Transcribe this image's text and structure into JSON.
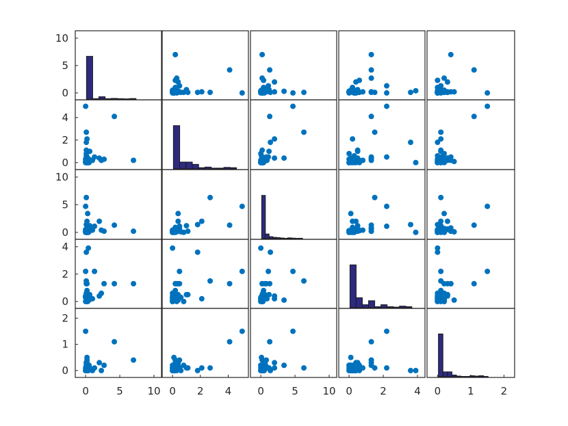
{
  "chart_data": {
    "type": "scatter",
    "title": "",
    "variables": 5,
    "marker_color": "#0072bd",
    "histogram_color": "#2e2a7e",
    "grid": false,
    "axes": [
      {
        "lim": [
          0,
          11
        ],
        "ticks": [
          0,
          5,
          10
        ],
        "hlim": [
          0,
          11
        ],
        "hticks": [
          0,
          5,
          10
        ]
      },
      {
        "lim": [
          0,
          5.4
        ],
        "ticks": [
          0,
          2,
          4
        ],
        "hlim": [
          0,
          5.4
        ],
        "hticks": [
          0,
          2,
          4
        ]
      },
      {
        "lim": [
          0,
          11
        ],
        "ticks": [
          0,
          5,
          10
        ],
        "hlim": [
          0,
          11
        ],
        "hticks": [
          0,
          5,
          10
        ]
      },
      {
        "lim": [
          0,
          4.4
        ],
        "ticks": [
          0,
          2,
          4
        ],
        "hlim": [
          0,
          4.4
        ],
        "hticks": [
          0,
          2,
          4
        ]
      },
      {
        "lim": [
          0,
          2.3
        ],
        "ticks": [
          0,
          1,
          2
        ],
        "hlim": [
          0,
          2.3
        ],
        "hticks": [
          0,
          1,
          2
        ]
      }
    ],
    "variable_data": [
      [
        0.1,
        0.1,
        0.1,
        0.2,
        0.2,
        0.3,
        0.5,
        0.5,
        0.0,
        0.1,
        0.2,
        0.3,
        0.4,
        0.1,
        0.0,
        0.2,
        0.6,
        1.0,
        0.2,
        0.0,
        0.3,
        0.5,
        0.1,
        0.0,
        0.4,
        0.2,
        0.0,
        0.1,
        0.3,
        0.2,
        1.3,
        2.0,
        2.3,
        2.7,
        4.2,
        7.0,
        0.2,
        0.1,
        0.0,
        0.3,
        0.1,
        0.1,
        0.2,
        0.4
      ],
      [
        0.8,
        1.1,
        0.6,
        0.1,
        0.2,
        0.0,
        0.0,
        0.3,
        0.1,
        0.4,
        2.1,
        0.0,
        0.2,
        0.0,
        0.1,
        0.5,
        1.0,
        0.2,
        0.3,
        0.1,
        0.0,
        0.2,
        0.4,
        0.0,
        0.1,
        0.2,
        0.3,
        0.0,
        0.2,
        0.1,
        0.5,
        0.4,
        0.2,
        0.3,
        4.1,
        0.2,
        0.0,
        0.1,
        5.0,
        0.4,
        1.8,
        2.7,
        0.2,
        0.0
      ],
      [
        0.0,
        0.2,
        0.1,
        0.3,
        0.4,
        0.0,
        0.1,
        0.2,
        0.5,
        0.6,
        2.0,
        0.0,
        0.1,
        0.3,
        0.2,
        0.8,
        1.2,
        0.4,
        0.1,
        0.0,
        0.2,
        0.9,
        0.5,
        0.3,
        0.1,
        0.0,
        0.2,
        0.4,
        0.7,
        0.1,
        1.1,
        2.0,
        0.4,
        0.2,
        1.3,
        0.2,
        0.3,
        0.0,
        4.7,
        3.4,
        1.4,
        6.3,
        0.6,
        0.0
      ],
      [
        0.0,
        0.5,
        0.3,
        0.1,
        0.8,
        0.2,
        0.3,
        0.1,
        0.4,
        1.3,
        0.2,
        0.0,
        0.1,
        0.6,
        0.4,
        1.3,
        0.5,
        0.2,
        0.0,
        0.3,
        0.1,
        0.2,
        0.5,
        0.0,
        0.2,
        0.1,
        0.3,
        0.4,
        0.2,
        0.1,
        2.2,
        0.4,
        0.6,
        1.3,
        1.3,
        1.3,
        0.0,
        0.2,
        2.2,
        0.1,
        3.6,
        1.5,
        0.5,
        3.9
      ],
      [
        0.2,
        0.1,
        0.0,
        0.0,
        0.1,
        0.0,
        0.1,
        0.2,
        0.0,
        0.3,
        0.1,
        0.0,
        0.1,
        0.2,
        0.0,
        0.4,
        0.1,
        0.0,
        0.2,
        0.1,
        0.0,
        0.1,
        0.3,
        0.0,
        0.1,
        0.2,
        0.0,
        0.1,
        0.2,
        0.5,
        0.1,
        0.3,
        0.0,
        0.2,
        1.1,
        0.4,
        0.1,
        0.0,
        1.5,
        0.2,
        0.0,
        0.1,
        0.3,
        0.0
      ]
    ],
    "histograms": [
      {
        "edges": [
          0,
          1,
          2,
          3,
          4,
          5,
          6,
          7,
          8
        ],
        "heights": [
          7,
          0.08,
          0.4,
          0.08,
          0.12,
          0.08,
          0.05,
          0.1
        ]
      },
      {
        "edges": [
          0,
          0.5,
          1,
          1.5,
          2,
          2.5,
          3,
          3.5,
          4,
          4.5,
          5
        ],
        "heights": [
          2.85,
          0.45,
          0.45,
          0.3,
          0.08,
          0.12,
          0.05,
          0.05,
          0.1,
          0.08
        ]
      },
      {
        "edges": [
          0,
          0.6,
          1.2,
          1.8,
          2.4,
          3.0,
          3.6,
          4.2,
          4.8,
          5.4,
          6.0,
          6.6
        ],
        "heights": [
          6.5,
          0.7,
          0.3,
          0.2,
          0.15,
          0.1,
          0.05,
          0.12,
          0.08,
          0.05,
          0.06
        ]
      },
      {
        "edges": [
          0,
          0.4,
          0.8,
          1.2,
          1.6,
          2.0,
          2.4,
          2.8,
          3.2,
          3.6,
          4.0
        ],
        "heights": [
          2.15,
          0.5,
          0.15,
          0.35,
          0.05,
          0.15,
          0.05,
          0.03,
          0.08,
          0.05
        ]
      },
      {
        "edges": [
          0,
          0.15,
          0.3,
          0.45,
          0.6,
          0.75,
          0.9,
          1.05,
          1.2,
          1.35,
          1.5,
          1.65
        ],
        "heights": [
          1.22,
          0.14,
          0.14,
          0.05,
          0.02,
          0.01,
          0.01,
          0.03,
          0.02,
          0.03,
          0.01
        ]
      }
    ]
  }
}
